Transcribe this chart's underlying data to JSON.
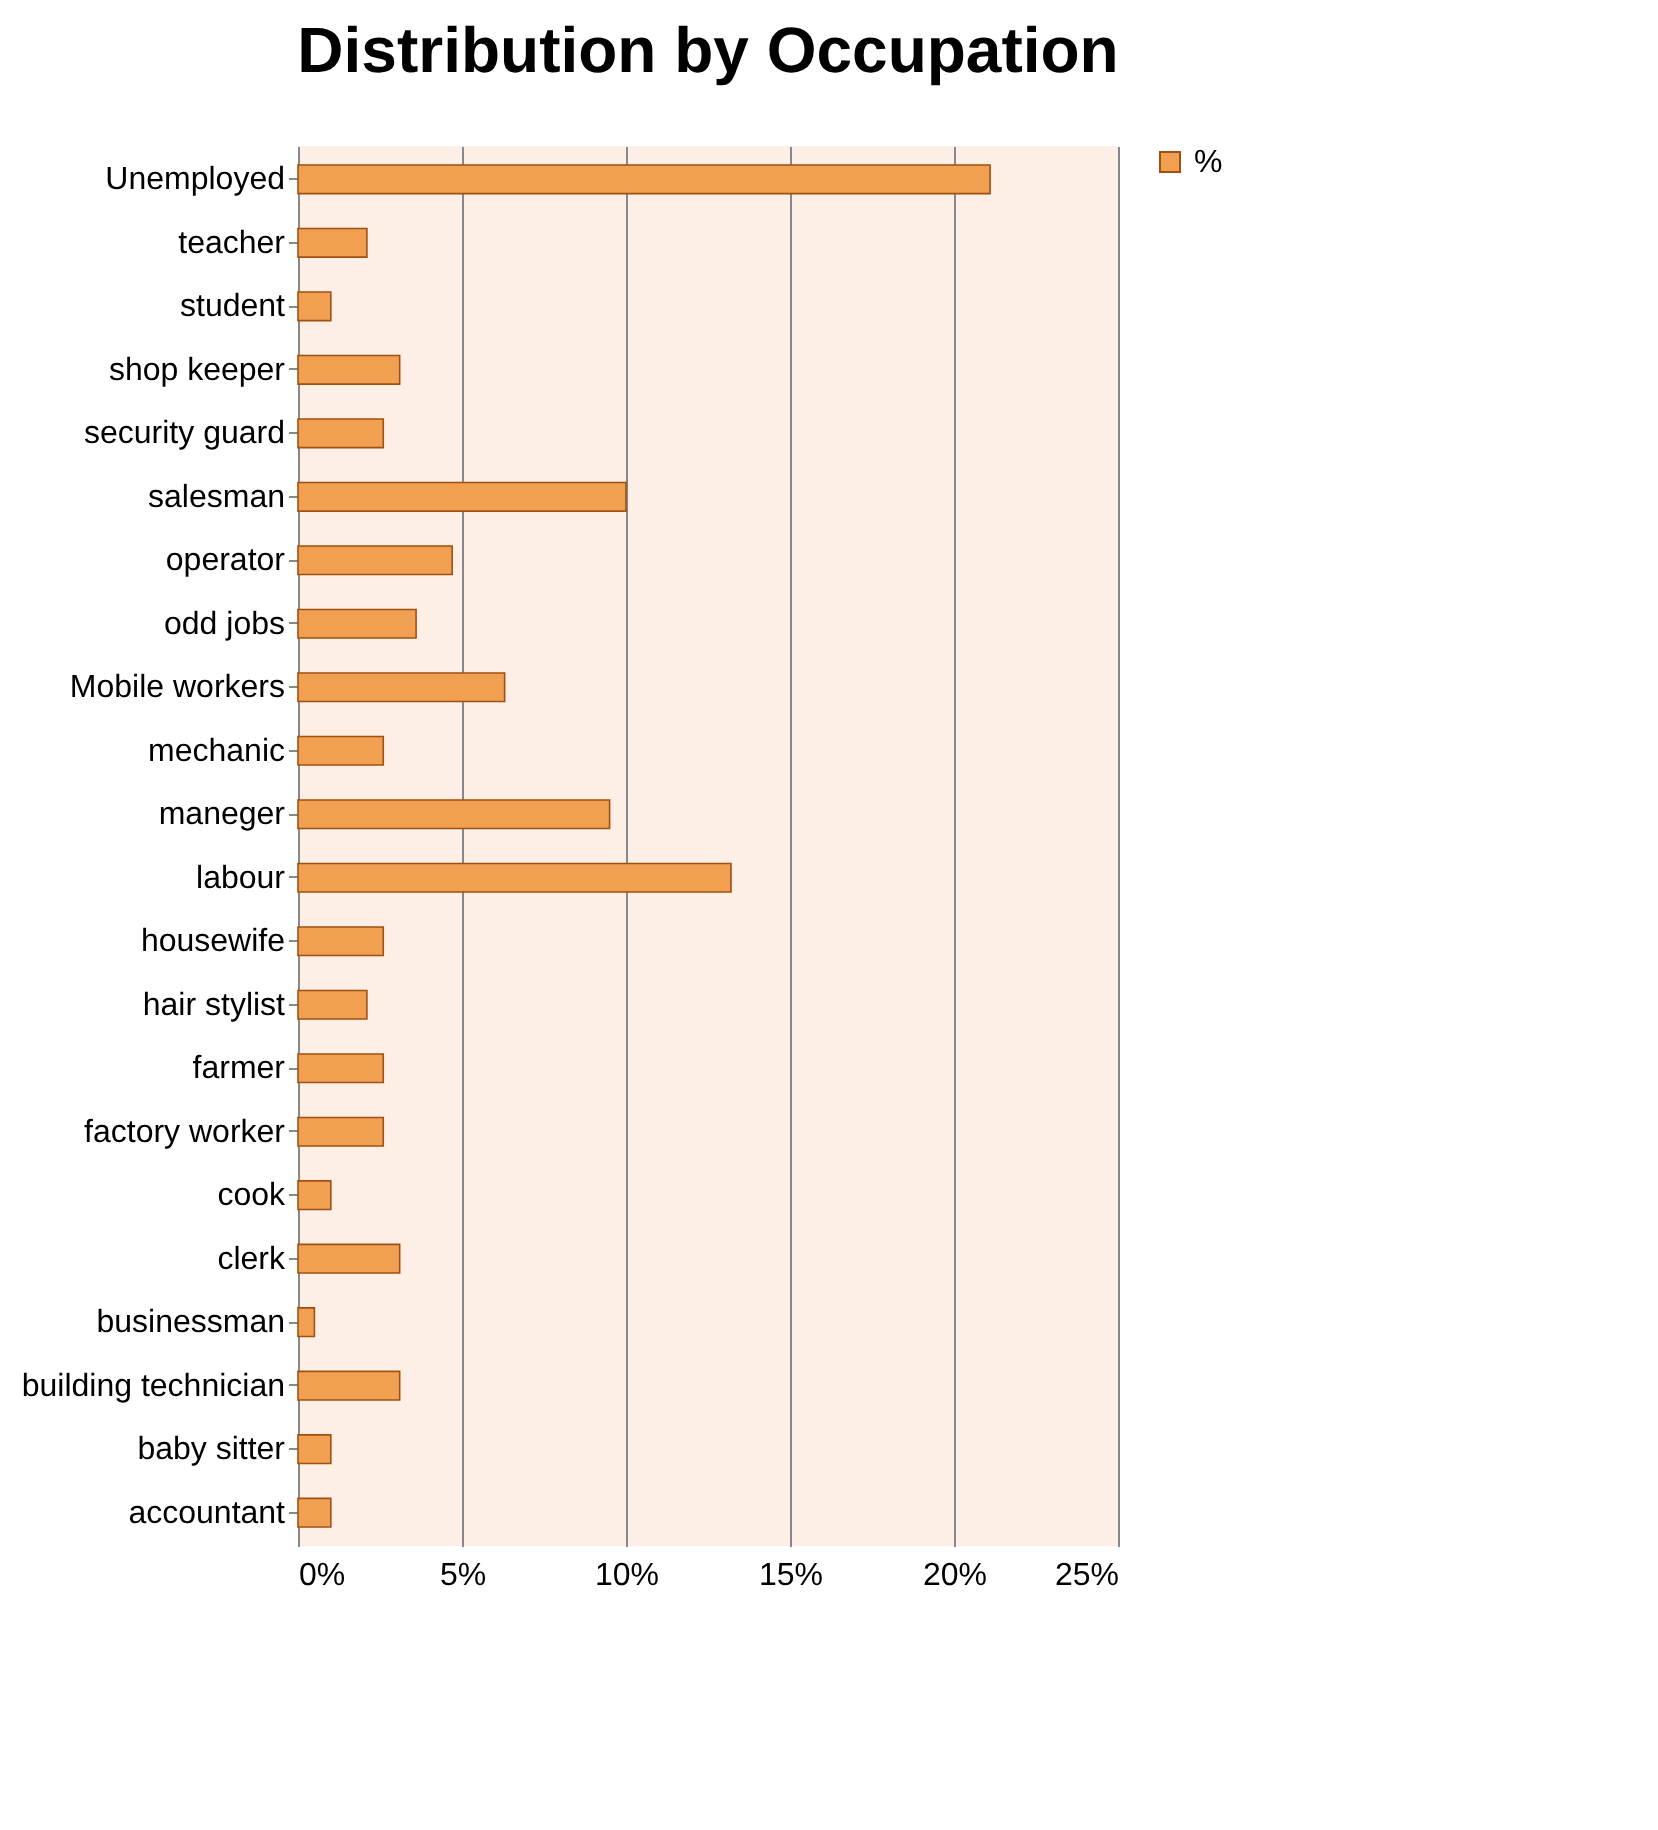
{
  "chart_data": {
    "type": "bar",
    "orientation": "horizontal",
    "title": "Distribution by Occupation",
    "categories": [
      "Unemployed",
      "teacher",
      "student",
      "shop keeper",
      "security guard",
      "salesman",
      "operator",
      "odd jobs",
      "Mobile workers",
      "mechanic",
      "maneger",
      "labour",
      "housewife",
      "hair stylist",
      "farmer",
      "factory worker",
      "cook",
      "clerk",
      "businessman",
      "building technician",
      "baby sitter",
      "accountant"
    ],
    "series": [
      {
        "name": "%",
        "color": "#f0a050",
        "values": [
          21.1,
          2.1,
          1,
          3.1,
          2.6,
          10,
          4.7,
          3.6,
          6.3,
          2.6,
          9.5,
          13.2,
          2.6,
          2.1,
          2.6,
          2.6,
          1,
          3.1,
          0.5,
          3.1,
          1,
          1
        ]
      }
    ],
    "xlim": [
      0,
      25
    ],
    "xticks": [
      {
        "value": 0,
        "label": "0%"
      },
      {
        "value": 5,
        "label": "5%"
      },
      {
        "value": 10,
        "label": "10%"
      },
      {
        "value": 15,
        "label": "15%"
      },
      {
        "value": 20,
        "label": "20%"
      },
      {
        "value": 25,
        "label": "25%"
      }
    ],
    "grid": "x",
    "legend": "right"
  }
}
